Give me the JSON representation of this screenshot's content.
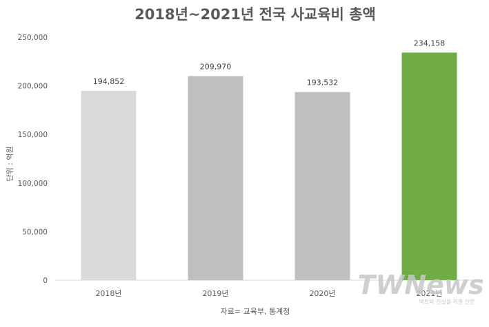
{
  "chart_data": {
    "type": "bar",
    "title": "2018년~2021년 전국 사교육비 총액",
    "ylabel": "단위 : 억원",
    "xlabel": "자료= 교육부, 통계청",
    "categories": [
      "2018년",
      "2019년",
      "2020년",
      "2021년"
    ],
    "values": [
      194852,
      209970,
      193532,
      234158
    ],
    "data_labels": [
      "194,852",
      "209,970",
      "193,532",
      "234,158"
    ],
    "bar_colors": [
      "#d9d9d9",
      "#bfbfbf",
      "#bfbfbf",
      "#70ad47"
    ],
    "ylim": [
      0,
      250000
    ],
    "yticks": [
      0,
      50000,
      100000,
      150000,
      200000,
      250000
    ],
    "ytick_labels": [
      "0",
      "50,000",
      "100,000",
      "150,000",
      "200,000",
      "250,000"
    ],
    "grid": false,
    "legend": "none"
  },
  "watermark": {
    "logo_text": "TWNews",
    "sub_text": "팩트와 진실을 위한 신문"
  }
}
